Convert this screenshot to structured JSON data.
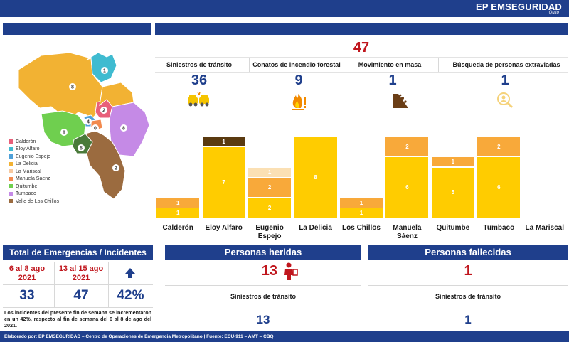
{
  "header": {
    "brand": "EP EMSEGURIDAD",
    "brand_tagline": "Quito"
  },
  "summary": {
    "total": "47",
    "categories": [
      {
        "label": "Siniestros de tránsito",
        "value": "36",
        "icon": "car-crash-icon"
      },
      {
        "label": "Conatos de incendio forestal",
        "value": "9",
        "icon": "fire-icon"
      },
      {
        "label": "Movimiento en masa",
        "value": "1",
        "icon": "landslide-icon"
      },
      {
        "label": "Búsqueda de personas extraviadas",
        "value": "1",
        "icon": "search-person-icon"
      }
    ]
  },
  "map": {
    "region_labels": [
      "1",
      "8",
      "2",
      "4",
      "0",
      "8",
      "8",
      "6",
      "2"
    ],
    "legend": [
      {
        "label": "Calderón",
        "color": "#e8607a"
      },
      {
        "label": "Eloy Alfaro",
        "color": "#3fbbd0"
      },
      {
        "label": "Eugenio Espejo",
        "color": "#4fa0d8"
      },
      {
        "label": "La Delicia",
        "color": "#f2b233"
      },
      {
        "label": "La Mariscal",
        "color": "#f7c9a0"
      },
      {
        "label": "Manuela Sáenz",
        "color": "#f28a4e"
      },
      {
        "label": "Quitumbe",
        "color": "#6fcf4f"
      },
      {
        "label": "Tumbaco",
        "color": "#c58ae6"
      },
      {
        "label": "Valle de Los Chillos",
        "color": "#9b6b3f"
      }
    ]
  },
  "chart_data": {
    "type": "bar",
    "stacked": true,
    "categories": [
      "Calderón",
      "Eloy Alfaro",
      "Eugenio Espejo",
      "La Delicia",
      "Los Chillos",
      "Manuela Sáenz",
      "Quitumbe",
      "Tumbaco",
      "La Mariscal"
    ],
    "series": [
      {
        "color": "#ffcc00",
        "values": [
          1,
          7,
          2,
          8,
          1,
          6,
          5,
          6,
          0
        ]
      },
      {
        "color": "#f8a93a",
        "values": [
          1,
          0,
          2,
          0,
          1,
          2,
          1,
          2,
          0
        ]
      },
      {
        "color": "#fbe0b4",
        "values": [
          0,
          0,
          1,
          0,
          0,
          0,
          0,
          0,
          0
        ]
      },
      {
        "color": "#5a3a10",
        "values": [
          0,
          1,
          0,
          0,
          0,
          0,
          0,
          0,
          0
        ]
      }
    ],
    "ylim": [
      0,
      8
    ],
    "grid": false,
    "legend": "none"
  },
  "totals_panel": {
    "title": "Total de Emergencias / Incidentes",
    "period1": "6 al 8 ago 2021",
    "period2": "13 al 15 ago 2021",
    "value1": "33",
    "value2": "47",
    "change": "42%",
    "trend_icon": "arrow-up-icon",
    "note": "Los incidentes del presente fin de semana se incrementaron en un 42%, respecto al fin de semana del 6 al 8 de ago del 2021."
  },
  "injured": {
    "title": "Personas heridas",
    "value": "13",
    "icon": "injured-person-icon",
    "cause": "Siniestros de tránsito",
    "cause_value": "13"
  },
  "deceased": {
    "title": "Personas fallecidas",
    "value": "1",
    "cause": "Siniestros de tránsito",
    "cause_value": "1"
  },
  "footer": {
    "text": "Elaborado por: EP EMSEGURIDAD – Centro de Operaciones de Emergencia Metropolitano | Fuente: ECU-911 – AMT – CBQ"
  }
}
